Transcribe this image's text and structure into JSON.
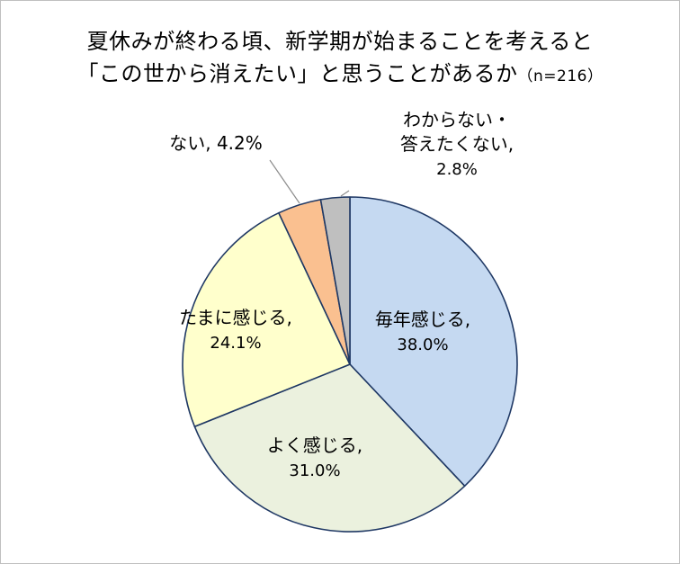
{
  "chart_data": {
    "type": "pie",
    "title_line1": "夏休みが終わる頃、新学期が始まることを考えると",
    "title_line2": "「この世から消えたい」と思うことがあるか",
    "title_n": "（n=216）",
    "slices": [
      {
        "label": "毎年感じる,",
        "value": 38.0,
        "value_label": "38.0%",
        "color": "#c5d9f1"
      },
      {
        "label": "よく感じる,",
        "value": 31.0,
        "value_label": "31.0%",
        "color": "#ebf1de"
      },
      {
        "label": "たまに感じる,",
        "value": 24.1,
        "value_label": "24.1%",
        "color": "#ffffcc"
      },
      {
        "label": "ない,",
        "value": 4.2,
        "value_label": "4.2%",
        "color": "#fac090"
      },
      {
        "label": "わからない・\n答えたくない,",
        "value": 2.8,
        "value_label": "2.8%",
        "color": "#bfbfbf"
      }
    ]
  }
}
